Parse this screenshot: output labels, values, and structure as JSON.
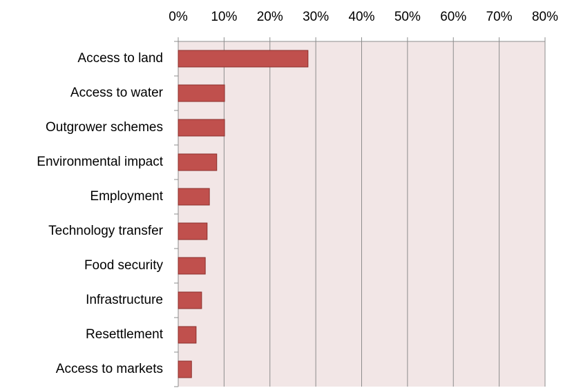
{
  "chart_data": {
    "type": "hbar",
    "categories": [
      "Access to land",
      "Access to water",
      "Outgrower schemes",
      "Environmental impact",
      "Employment",
      "Technology transfer",
      "Food security",
      "Infrastructure",
      "Resettlement",
      "Access to markets"
    ],
    "values": [
      28.3,
      10.1,
      10.1,
      8.4,
      6.8,
      6.3,
      5.9,
      5.1,
      3.9,
      2.9
    ],
    "color": "#c0504d",
    "xlim": [
      0,
      80
    ],
    "xticks": [
      {
        "value": 0,
        "label": "0%"
      },
      {
        "value": 10,
        "label": "10%"
      },
      {
        "value": 20,
        "label": "20%"
      },
      {
        "value": 30,
        "label": "30%"
      },
      {
        "value": 40,
        "label": "40%"
      },
      {
        "value": 50,
        "label": "50%"
      },
      {
        "value": 60,
        "label": "60%"
      },
      {
        "value": 70,
        "label": "70%"
      },
      {
        "value": 80,
        "label": "80%"
      }
    ],
    "grid": true
  }
}
